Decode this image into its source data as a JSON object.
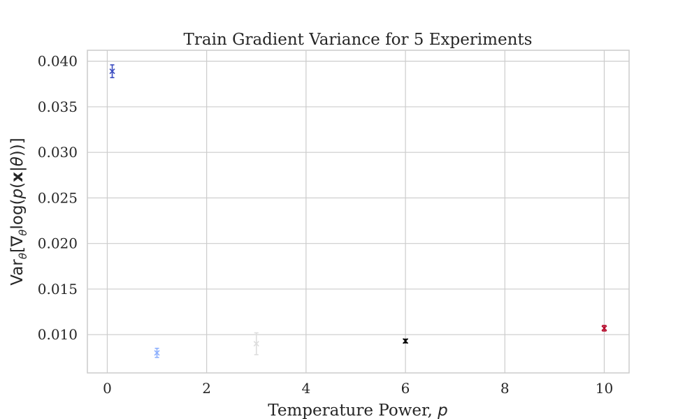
{
  "chart_data": {
    "type": "scatter",
    "title": "Train Gradient Variance for 5 Experiments",
    "xlabel": "Temperature Power, ",
    "xlabel_var": "p",
    "ylabel": "Var_θ[∇_θ log(p(x|θ))]",
    "xlim": [
      -0.4,
      10.5
    ],
    "ylim": [
      0.0058,
      0.0412
    ],
    "xticks": [
      0,
      2,
      4,
      6,
      8,
      10
    ],
    "yticks": [
      0.01,
      0.015,
      0.02,
      0.025,
      0.03,
      0.035,
      0.04
    ],
    "grid": true,
    "marker": "x",
    "points": [
      {
        "x": 0.1,
        "y": 0.0389,
        "err": 0.0007,
        "color": "#3b4cc0"
      },
      {
        "x": 1,
        "y": 0.008,
        "err": 0.0005,
        "color": "#8db0fe"
      },
      {
        "x": 3,
        "y": 0.009,
        "err": 0.0012,
        "color": "#dddddd"
      },
      {
        "x": 6,
        "y": 0.0093,
        "err": 0.0002,
        "color": "#000000"
      },
      {
        "x": 10,
        "y": 0.0107,
        "err": 0.0003,
        "color": "#b40426"
      }
    ]
  }
}
